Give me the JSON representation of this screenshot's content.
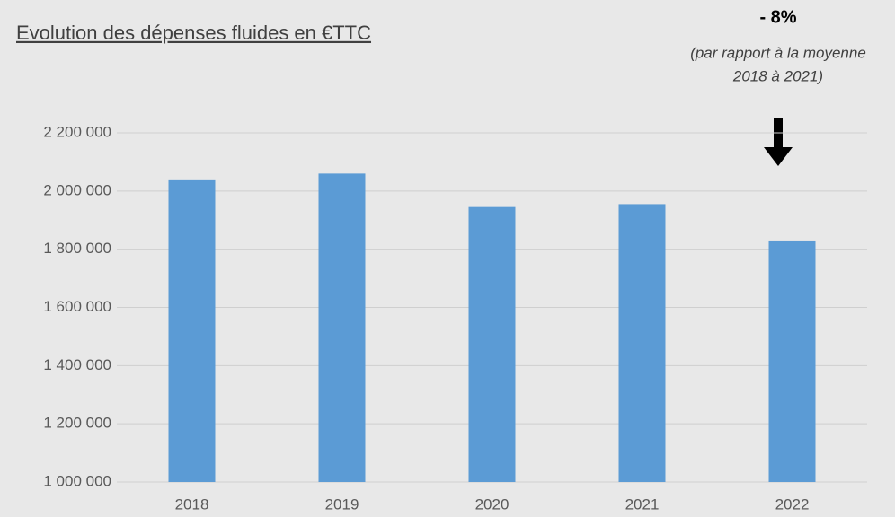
{
  "chart_data": {
    "type": "bar",
    "title": "Evolution des dépenses fluides en €TTC",
    "annotation_headline": "- 8%",
    "annotation_lines": [
      "(par rapport à la moyenne",
      "2018 à 2021)"
    ],
    "categories": [
      "2018",
      "2019",
      "2020",
      "2021",
      "2022"
    ],
    "values": [
      2040000,
      2060000,
      1945000,
      1955000,
      1830000
    ],
    "color": "#5b9bd5",
    "ylim": [
      1000000,
      2200000
    ],
    "yticks": [
      {
        "value": 1000000,
        "label": "1 000 000"
      },
      {
        "value": 1200000,
        "label": "1 200 000"
      },
      {
        "value": 1400000,
        "label": "1 400 000"
      },
      {
        "value": 1600000,
        "label": "1 600 000"
      },
      {
        "value": 1800000,
        "label": "1 800 000"
      },
      {
        "value": 2000000,
        "label": "2 000 000"
      },
      {
        "value": 2200000,
        "label": "2 200 000"
      }
    ],
    "grid": true
  }
}
